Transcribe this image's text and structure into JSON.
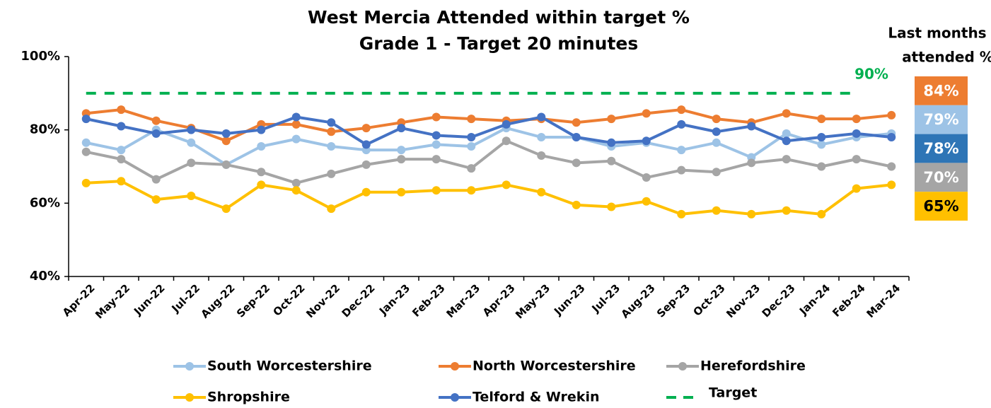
{
  "chart_data": {
    "type": "line",
    "title_lines": [
      "West Mercia Attended within target %",
      "Grade 1 - Target 20 minutes"
    ],
    "categories": [
      "Apr-22",
      "May-22",
      "Jun-22",
      "Jul-22",
      "Aug-22",
      "Sep-22",
      "Oct-22",
      "Nov-22",
      "Dec-22",
      "Jan-23",
      "Feb-23",
      "Mar-23",
      "Apr-23",
      "May-23",
      "Jun-23",
      "Jul-23",
      "Aug-23",
      "Sep-23",
      "Oct-23",
      "Nov-23",
      "Dec-23",
      "Jan-24",
      "Feb-24",
      "Mar-24"
    ],
    "ylim": [
      40,
      100
    ],
    "yticks": [
      {
        "value": 40,
        "label": "40%"
      },
      {
        "value": 60,
        "label": "60%"
      },
      {
        "value": 80,
        "label": "80%"
      },
      {
        "value": 100,
        "label": "100%"
      }
    ],
    "grid": false,
    "series": [
      {
        "name": "South Worcestershire",
        "color": "#9dc3e6",
        "markers": true,
        "values": [
          76.5,
          74.5,
          80,
          76.5,
          70.5,
          75.5,
          77.5,
          75.5,
          74.5,
          74.5,
          76,
          75.5,
          80.5,
          78,
          78,
          75.5,
          76.5,
          74.5,
          76.5,
          72.5,
          79,
          76,
          78,
          79
        ]
      },
      {
        "name": "North Worcestershire",
        "color": "#ed7d31",
        "markers": true,
        "values": [
          84.5,
          85.5,
          82.5,
          80.5,
          77,
          81.5,
          81.5,
          79.5,
          80.5,
          82,
          83.5,
          83,
          82.5,
          83,
          82,
          83,
          84.5,
          85.5,
          83,
          82,
          84.5,
          83,
          83,
          84
        ]
      },
      {
        "name": "Herefordshire",
        "color": "#a5a5a5",
        "markers": true,
        "values": [
          74,
          72,
          66.5,
          71,
          70.5,
          68.5,
          65.5,
          68,
          70.5,
          72,
          72,
          69.5,
          77,
          73,
          71,
          71.5,
          67,
          69,
          68.5,
          71,
          72,
          70,
          72,
          70
        ]
      },
      {
        "name": "Shropshire",
        "color": "#ffc000",
        "markers": true,
        "values": [
          65.5,
          66,
          61,
          62,
          58.5,
          65,
          63.5,
          58.5,
          63,
          63,
          63.5,
          63.5,
          65,
          63,
          59.5,
          59,
          60.5,
          57,
          58,
          57,
          58,
          57,
          64,
          65
        ]
      },
      {
        "name": "Telford & Wrekin",
        "color": "#4472c4",
        "markers": true,
        "values": [
          83,
          81,
          79,
          80,
          79,
          80,
          83.5,
          82,
          76,
          80.5,
          78.5,
          78,
          81.5,
          83.5,
          78,
          76.5,
          77,
          81.5,
          79.5,
          81,
          77,
          78,
          79,
          78
        ]
      },
      {
        "name": "Target",
        "color": "#00b050",
        "markers": false,
        "dashed": true,
        "values": [
          90,
          90,
          90,
          90,
          90,
          90,
          90,
          90,
          90,
          90,
          90,
          90,
          90,
          90,
          90,
          90,
          90,
          90,
          90,
          90,
          90,
          90,
          90,
          null
        ]
      }
    ],
    "annotation": "90%",
    "last_month": {
      "title_lines": [
        "Last months",
        "attended %"
      ],
      "items": [
        {
          "label": "84%",
          "color": "#ed7d31",
          "text_color": "#ffffff"
        },
        {
          "label": "79%",
          "color": "#9dc3e6",
          "text_color": "#ffffff"
        },
        {
          "label": "78%",
          "color": "#2e75b6",
          "text_color": "#ffffff"
        },
        {
          "label": "70%",
          "color": "#a5a5a5",
          "text_color": "#ffffff"
        },
        {
          "label": "65%",
          "color": "#ffc000",
          "text_color": "#000000"
        }
      ]
    }
  }
}
